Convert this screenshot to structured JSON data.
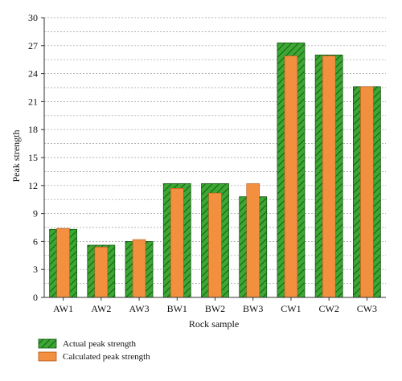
{
  "chart_data": {
    "type": "bar",
    "xlabel": "Rock sample",
    "ylabel": "Peak strength",
    "ylim": [
      0,
      30
    ],
    "yticks": [
      0,
      3,
      6,
      9,
      12,
      15,
      18,
      21,
      24,
      27,
      30
    ],
    "grid": "horizontal dashed",
    "legend_position": "bottom-left",
    "categories": [
      "AW1",
      "AW2",
      "AW3",
      "BW1",
      "BW2",
      "BW3",
      "CW1",
      "CW2",
      "CW3"
    ],
    "series": [
      {
        "name": "Actual peak strength",
        "values": [
          7.3,
          5.6,
          6.0,
          12.2,
          12.2,
          10.8,
          27.3,
          26.0,
          22.6
        ]
      },
      {
        "name": "Calculated peak strength",
        "values": [
          7.4,
          5.4,
          6.2,
          11.7,
          11.2,
          12.2,
          25.9,
          25.9,
          22.6
        ]
      }
    ],
    "colors": {
      "actual_fill": "#3aa832",
      "actual_hatch": "#1a5a16",
      "calculated_fill": "#f39040",
      "calculated_stroke": "#b0561a"
    }
  }
}
